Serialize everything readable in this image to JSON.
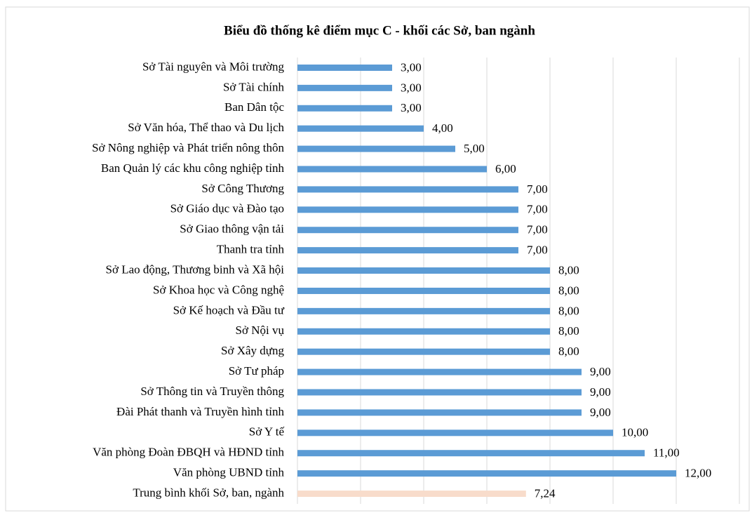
{
  "chart_data": {
    "type": "bar",
    "orientation": "horizontal",
    "title": "Biểu đồ thống kê điểm mục C - khối các Sở, ban ngành",
    "categories": [
      "Sở Tài nguyên và Môi trường",
      "Sở Tài chính",
      "Ban Dân tộc",
      "Sở Văn hóa, Thể thao và Du lịch",
      "Sở Nông nghiệp và Phát triển nông thôn",
      "Ban Quản lý các khu công nghiệp tỉnh",
      "Sở Công Thương",
      "Sở Giáo dục và Đào tạo",
      "Sở Giao thông vận tải",
      "Thanh tra tỉnh",
      "Sở Lao động, Thương binh và Xã hội",
      "Sở Khoa học và Công nghệ",
      "Sở Kế hoạch và Đầu tư",
      "Sở Nội vụ",
      "Sở Xây dựng",
      "Sở Tư pháp",
      "Sở Thông tin và Truyền thông",
      "Đài Phát thanh và Truyền hình tỉnh",
      "Sở Y tế",
      "Văn phòng Đoàn ĐBQH và HĐND tỉnh",
      "Văn phòng UBND tỉnh",
      "Trung bình khối Sở, ban, ngành"
    ],
    "values": [
      3,
      3,
      3,
      4,
      5,
      6,
      7,
      7,
      7,
      7,
      8,
      8,
      8,
      8,
      8,
      9,
      9,
      9,
      10,
      11,
      12,
      7.24
    ],
    "value_labels": [
      "3,00",
      "3,00",
      "3,00",
      "4,00",
      "5,00",
      "6,00",
      "7,00",
      "7,00",
      "7,00",
      "7,00",
      "8,00",
      "8,00",
      "8,00",
      "8,00",
      "8,00",
      "9,00",
      "9,00",
      "9,00",
      "10,00",
      "11,00",
      "12,00",
      "7,24"
    ],
    "colors": [
      "#5b9bd5",
      "#5b9bd5",
      "#5b9bd5",
      "#5b9bd5",
      "#5b9bd5",
      "#5b9bd5",
      "#5b9bd5",
      "#5b9bd5",
      "#5b9bd5",
      "#5b9bd5",
      "#5b9bd5",
      "#5b9bd5",
      "#5b9bd5",
      "#5b9bd5",
      "#5b9bd5",
      "#5b9bd5",
      "#5b9bd5",
      "#5b9bd5",
      "#5b9bd5",
      "#5b9bd5",
      "#5b9bd5",
      "#f8dccb"
    ],
    "xlim": [
      0,
      14
    ],
    "xticks": [
      0,
      2,
      4,
      6,
      8,
      10,
      12,
      14
    ],
    "grid": true
  }
}
